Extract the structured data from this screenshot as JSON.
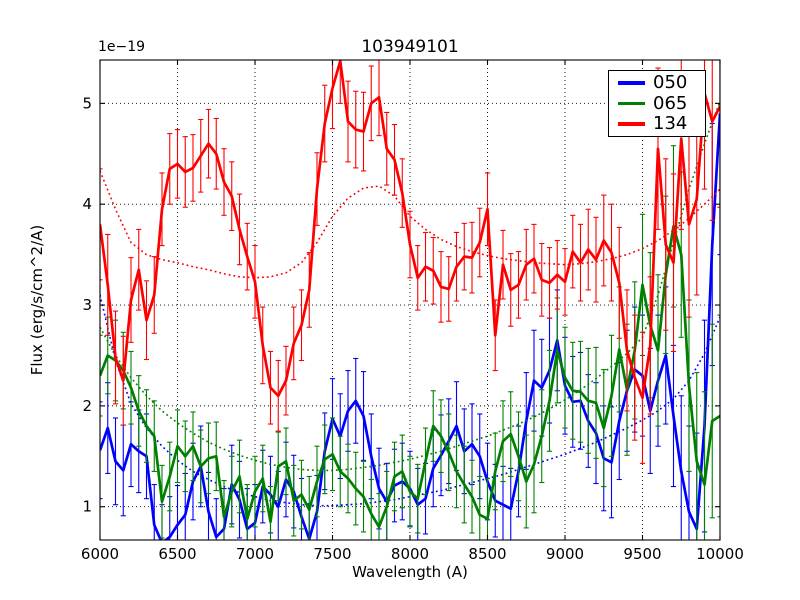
{
  "title": "103949101",
  "y_offset_label": "1e−19",
  "xlabel": "Wavelength (A)",
  "ylabel": "Flux (erg/s/cm^2/A)",
  "legend": {
    "position": "upper right",
    "entries": [
      {
        "label": "050",
        "color": "#0000ff"
      },
      {
        "label": "065",
        "color": "#008000"
      },
      {
        "label": "134",
        "color": "#ff0000"
      }
    ]
  },
  "chart_data": {
    "type": "line",
    "title": "103949101",
    "xlabel": "Wavelength (A)",
    "ylabel": "Flux (erg/s/cm^2/A)",
    "y_unit_scale": "1e-19",
    "xlim": [
      6000,
      10000
    ],
    "ylim": [
      0.67,
      5.43
    ],
    "xticks": [
      6000,
      6500,
      7000,
      7500,
      8000,
      8500,
      9000,
      9500,
      10000
    ],
    "yticks": [
      1,
      2,
      3,
      4,
      5
    ],
    "grid": true,
    "grid_style": "dotted",
    "legend_position": "upper right",
    "x_start": 6000,
    "x_step": 50,
    "model_x_start": 6000,
    "model_x_step": 100,
    "wavelengths": [
      6000,
      6050,
      6100,
      6150,
      6200,
      6250,
      6300,
      6350,
      6400,
      6450,
      6500,
      6550,
      6600,
      6650,
      6700,
      6750,
      6800,
      6850,
      6900,
      6950,
      7000,
      7050,
      7100,
      7150,
      7200,
      7250,
      7300,
      7350,
      7400,
      7450,
      7500,
      7550,
      7600,
      7650,
      7700,
      7750,
      7800,
      7850,
      7900,
      7950,
      8000,
      8050,
      8100,
      8150,
      8200,
      8250,
      8300,
      8350,
      8400,
      8450,
      8500,
      8550,
      8600,
      8650,
      8700,
      8750,
      8800,
      8850,
      8900,
      8950,
      9000,
      9050,
      9100,
      9150,
      9200,
      9250,
      9300,
      9350,
      9400,
      9450,
      9500,
      9550,
      9600,
      9650,
      9700,
      9750,
      9800,
      9850,
      9900,
      9950,
      10000
    ],
    "series": [
      {
        "name": "050",
        "color": "#0000ff",
        "values": [
          1.56,
          1.78,
          1.45,
          1.36,
          1.62,
          1.55,
          1.5,
          0.82,
          0.64,
          0.7,
          0.82,
          0.92,
          1.25,
          1.4,
          0.95,
          0.7,
          0.78,
          1.22,
          1.07,
          0.78,
          0.84,
          1.2,
          1.12,
          1.0,
          1.27,
          1.15,
          0.9,
          0.68,
          0.95,
          1.55,
          1.87,
          1.7,
          1.95,
          2.05,
          1.9,
          1.5,
          1.18,
          1.05,
          1.21,
          1.25,
          1.18,
          1.02,
          1.08,
          1.38,
          1.51,
          1.65,
          1.8,
          1.55,
          1.62,
          1.5,
          1.25,
          1.06,
          1.02,
          0.98,
          1.35,
          1.85,
          2.25,
          2.18,
          2.35,
          2.65,
          2.2,
          2.04,
          2.05,
          1.85,
          1.73,
          1.48,
          1.44,
          1.85,
          2.15,
          2.36,
          2.3,
          1.95,
          2.25,
          2.5,
          1.9,
          1.35,
          0.95,
          0.78,
          1.8,
          3.6,
          4.9
        ],
        "errors": [
          0.48,
          0.45,
          0.43,
          0.45,
          0.42,
          0.41,
          0.42,
          0.4,
          0.38,
          0.4,
          0.39,
          0.41,
          0.38,
          0.4,
          0.39,
          0.38,
          0.4,
          0.39,
          0.38,
          0.4,
          0.38,
          0.36,
          0.38,
          0.35,
          0.37,
          0.36,
          0.38,
          0.35,
          0.36,
          0.38,
          0.4,
          0.42,
          0.4,
          0.42,
          0.44,
          0.42,
          0.4,
          0.38,
          0.36,
          0.38,
          0.37,
          0.36,
          0.35,
          0.38,
          0.4,
          0.42,
          0.44,
          0.42,
          0.4,
          0.42,
          0.38,
          0.36,
          0.38,
          0.4,
          0.45,
          0.48,
          0.5,
          0.48,
          0.52,
          0.5,
          0.48,
          0.45,
          0.48,
          0.46,
          0.5,
          0.52,
          0.55,
          0.58,
          0.6,
          0.62,
          0.6,
          0.62,
          0.65,
          0.68,
          0.7,
          0.75,
          0.85,
          0.95,
          1.05,
          1.2,
          1.4
        ],
        "model": [
          3.1,
          2.45,
          2.02,
          1.78,
          1.6,
          1.46,
          1.35,
          1.27,
          1.2,
          1.14,
          1.1,
          1.06,
          1.04,
          1.02,
          1.01,
          1.01,
          1.02,
          1.03,
          1.05,
          1.07,
          1.1,
          1.13,
          1.16,
          1.2,
          1.24,
          1.28,
          1.32,
          1.37,
          1.42,
          1.47,
          1.52,
          1.58,
          1.64,
          1.71,
          1.78,
          1.86,
          1.95,
          2.07,
          2.25,
          2.52,
          2.88
        ]
      },
      {
        "name": "065",
        "color": "#008000",
        "values": [
          2.3,
          2.5,
          2.45,
          2.35,
          2.18,
          1.95,
          1.8,
          1.7,
          1.05,
          1.3,
          1.6,
          1.5,
          1.6,
          1.4,
          1.48,
          1.5,
          0.9,
          1.15,
          1.3,
          0.88,
          1.15,
          1.28,
          0.85,
          1.4,
          1.45,
          1.06,
          1.12,
          0.97,
          1.25,
          1.47,
          1.52,
          1.35,
          1.28,
          1.18,
          1.1,
          0.93,
          0.8,
          1.0,
          1.3,
          1.35,
          1.15,
          1.08,
          1.45,
          1.8,
          1.7,
          1.54,
          1.35,
          1.22,
          1.1,
          0.92,
          0.88,
          1.35,
          1.65,
          1.72,
          1.5,
          1.25,
          1.42,
          1.7,
          2.05,
          2.55,
          2.28,
          2.15,
          2.14,
          2.05,
          2.03,
          1.78,
          2.1,
          2.56,
          2.16,
          2.55,
          3.2,
          2.8,
          2.55,
          3.3,
          3.78,
          3.5,
          2.2,
          1.45,
          1.22,
          1.85,
          1.9
        ],
        "errors": [
          0.4,
          0.38,
          0.4,
          0.38,
          0.36,
          0.35,
          0.36,
          0.35,
          0.36,
          0.34,
          0.36,
          0.35,
          0.34,
          0.36,
          0.35,
          0.34,
          0.36,
          0.35,
          0.36,
          0.34,
          0.35,
          0.33,
          0.35,
          0.34,
          0.33,
          0.35,
          0.34,
          0.33,
          0.35,
          0.34,
          0.36,
          0.35,
          0.34,
          0.36,
          0.35,
          0.34,
          0.33,
          0.35,
          0.34,
          0.36,
          0.35,
          0.34,
          0.33,
          0.35,
          0.36,
          0.38,
          0.36,
          0.38,
          0.36,
          0.38,
          0.4,
          0.38,
          0.4,
          0.42,
          0.44,
          0.46,
          0.48,
          0.46,
          0.5,
          0.52,
          0.5,
          0.48,
          0.5,
          0.52,
          0.55,
          0.58,
          0.6,
          0.62,
          0.65,
          0.68,
          0.7,
          0.72,
          0.75,
          0.78,
          0.8,
          0.82,
          0.85,
          0.88,
          0.92,
          0.96,
          1.0
        ],
        "model": [
          2.78,
          2.5,
          2.28,
          2.1,
          1.95,
          1.83,
          1.73,
          1.64,
          1.57,
          1.51,
          1.46,
          1.42,
          1.39,
          1.37,
          1.36,
          1.36,
          1.37,
          1.39,
          1.41,
          1.44,
          1.47,
          1.51,
          1.55,
          1.6,
          1.65,
          1.7,
          1.76,
          1.82,
          1.89,
          1.97,
          2.06,
          2.16,
          2.27,
          2.39,
          2.52,
          2.68,
          3.1,
          3.62,
          4.15,
          4.6,
          5.02
        ]
      },
      {
        "name": "134",
        "color": "#ff0000",
        "values": [
          3.8,
          3.2,
          2.48,
          2.25,
          3.05,
          3.35,
          2.85,
          3.1,
          3.95,
          4.35,
          4.4,
          4.32,
          4.36,
          4.48,
          4.6,
          4.5,
          4.22,
          4.08,
          3.75,
          3.48,
          3.23,
          2.6,
          2.18,
          2.1,
          2.25,
          2.62,
          2.8,
          3.15,
          4.15,
          4.8,
          5.15,
          5.42,
          4.82,
          4.74,
          4.72,
          5.0,
          5.06,
          4.55,
          4.44,
          4.11,
          3.6,
          3.27,
          3.38,
          3.34,
          3.18,
          3.16,
          3.38,
          3.48,
          3.47,
          3.62,
          3.95,
          2.7,
          3.4,
          3.15,
          3.2,
          3.4,
          3.46,
          3.25,
          3.22,
          3.3,
          3.23,
          3.53,
          3.42,
          3.55,
          3.45,
          3.64,
          3.52,
          3.22,
          2.55,
          2.28,
          2.08,
          2.6,
          4.55,
          3.6,
          3.42,
          4.65,
          3.8,
          4.05,
          5.1,
          4.82,
          4.97
        ],
        "errors": [
          0.55,
          0.5,
          0.46,
          0.44,
          0.42,
          0.4,
          0.39,
          0.38,
          0.36,
          0.35,
          0.34,
          0.35,
          0.33,
          0.36,
          0.34,
          0.35,
          0.33,
          0.34,
          0.35,
          0.33,
          0.36,
          0.38,
          0.36,
          0.35,
          0.34,
          0.36,
          0.35,
          0.37,
          0.36,
          0.38,
          0.4,
          0.42,
          0.4,
          0.38,
          0.39,
          0.37,
          0.38,
          0.36,
          0.35,
          0.34,
          0.33,
          0.32,
          0.34,
          0.33,
          0.35,
          0.32,
          0.34,
          0.33,
          0.35,
          0.34,
          0.36,
          0.35,
          0.34,
          0.36,
          0.33,
          0.35,
          0.34,
          0.36,
          0.35,
          0.34,
          0.33,
          0.36,
          0.38,
          0.4,
          0.42,
          0.45,
          0.48,
          0.55,
          0.6,
          0.62,
          0.65,
          0.68,
          0.8,
          0.85,
          0.88,
          0.9,
          0.92,
          0.95,
          0.95,
          0.98,
          1.0
        ],
        "model": [
          4.33,
          3.95,
          3.62,
          3.5,
          3.45,
          3.42,
          3.38,
          3.35,
          3.31,
          3.28,
          3.27,
          3.28,
          3.32,
          3.42,
          3.62,
          3.88,
          4.06,
          4.16,
          4.18,
          4.08,
          3.88,
          3.75,
          3.65,
          3.58,
          3.53,
          3.49,
          3.46,
          3.44,
          3.42,
          3.41,
          3.4,
          3.41,
          3.43,
          3.46,
          3.5,
          3.56,
          3.64,
          3.74,
          3.86,
          4.0,
          4.15
        ]
      }
    ]
  }
}
